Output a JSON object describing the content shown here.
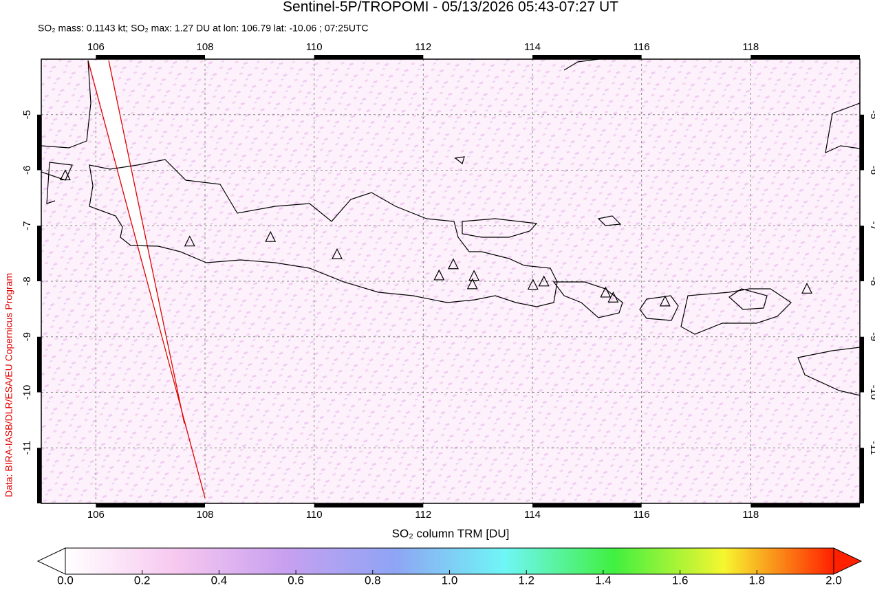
{
  "chart_data": {
    "type": "map",
    "title": "Sentinel-5P/TROPOMI - 05/13/2026 05:43-07:27 UT",
    "subtitle": "SO₂ mass: 0.1143 kt; SO₂ max: 1.27 DU at lon: 106.79 lat: -10.06 ; 07:25UTC",
    "side_note": "Data: BIRA-IASB/DLR/ESA/EU Copernicus Program",
    "xlim": [
      105,
      120
    ],
    "ylim": [
      -4,
      -12
    ],
    "xticks": [
      106,
      108,
      110,
      112,
      114,
      116,
      118
    ],
    "yticks": [
      -5,
      -6,
      -7,
      -8,
      -9,
      -10,
      -11
    ],
    "grid": true,
    "volcanoes": {
      "color": "#000000",
      "lon": [
        105.44,
        107.72,
        109.2,
        110.42,
        112.29,
        112.55,
        112.93,
        112.9,
        114.01,
        114.21,
        115.34,
        115.48,
        116.43,
        119.03
      ],
      "lat": [
        -6.1,
        -7.29,
        -7.21,
        -7.52,
        -7.9,
        -7.7,
        -7.91,
        -8.06,
        -8.07,
        -8.01,
        -8.21,
        -8.3,
        -8.37,
        -8.14
      ]
    },
    "colorbar": {
      "label": "SO₂ column TRM [DU]",
      "lim": [
        0,
        2
      ],
      "ticks": [
        {
          "value": 0,
          "label": "0.0"
        },
        0.2,
        0.4,
        0.6,
        0.8,
        {
          "value": 1,
          "label": "1.0"
        },
        1.2,
        1.4,
        1.6,
        1.8,
        {
          "value": 2,
          "label": "2.0"
        }
      ],
      "colors": [
        "#ffffff",
        "#f7c8f0",
        "#c8a0f0",
        "#8fa4f4",
        "#6ff6f6",
        "#40f040",
        "#f6f630",
        "#ff2000"
      ]
    }
  }
}
